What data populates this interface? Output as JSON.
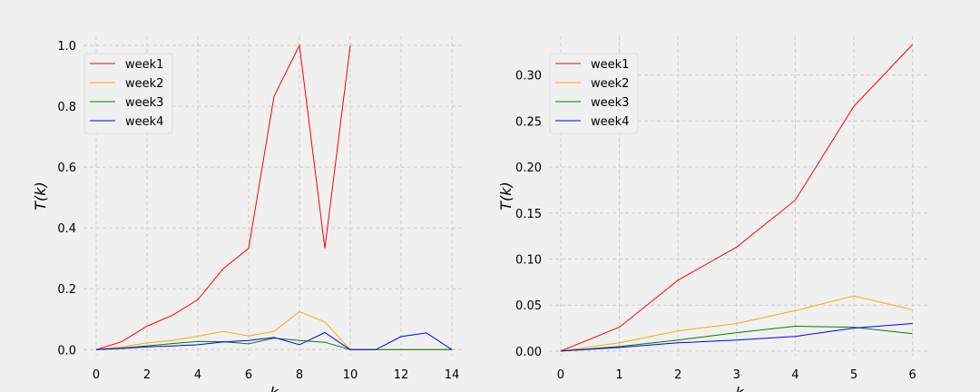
{
  "chart_data": [
    {
      "type": "line",
      "title": "",
      "xlabel": "k",
      "ylabel": "T(k)",
      "xlim": [
        -0.5,
        14.5
      ],
      "ylim": [
        -0.02,
        1.03
      ],
      "xticks": [
        0,
        2,
        4,
        6,
        8,
        10,
        12,
        14
      ],
      "yticks": [
        0.0,
        0.2,
        0.4,
        0.6,
        0.8,
        1.0
      ],
      "grid": true,
      "legend": "top-left",
      "series": [
        {
          "name": "week1",
          "color": "#ff0000",
          "x": [
            0,
            1,
            2,
            3,
            4,
            5,
            6,
            7,
            8,
            9,
            10
          ],
          "y": [
            0,
            0.026,
            0.077,
            0.113,
            0.164,
            0.266,
            0.333,
            0.833,
            1.0,
            0.333,
            1.0
          ]
        },
        {
          "name": "week2",
          "color": "#ffa500",
          "x": [
            0,
            1,
            2,
            3,
            4,
            5,
            6,
            7,
            8,
            9,
            10,
            11,
            12,
            13,
            14
          ],
          "y": [
            0,
            0.009,
            0.022,
            0.03,
            0.044,
            0.06,
            0.045,
            0.06,
            0.125,
            0.091,
            0,
            0,
            0,
            0,
            0
          ]
        },
        {
          "name": "week3",
          "color": "#008000",
          "x": [
            0,
            1,
            2,
            3,
            4,
            5,
            6,
            7,
            8,
            9,
            10,
            11,
            12,
            13,
            14
          ],
          "y": [
            0,
            0.005,
            0.012,
            0.02,
            0.027,
            0.026,
            0.019,
            0.038,
            0.03,
            0.024,
            0,
            0,
            0,
            0,
            0
          ]
        },
        {
          "name": "week4",
          "color": "#0000ff",
          "x": [
            0,
            1,
            2,
            3,
            4,
            5,
            6,
            7,
            8,
            9,
            10,
            11,
            12,
            13,
            14
          ],
          "y": [
            0,
            0.004,
            0.009,
            0.012,
            0.016,
            0.025,
            0.03,
            0.04,
            0.016,
            0.056,
            0,
            0,
            0.043,
            0.055,
            0
          ]
        }
      ]
    },
    {
      "type": "line",
      "title": "",
      "xlabel": "k",
      "ylabel": "T(k)",
      "xlim": [
        -0.2,
        6.3
      ],
      "ylim": [
        -0.005,
        0.342
      ],
      "xticks": [
        0,
        1,
        2,
        3,
        4,
        5,
        6
      ],
      "yticks": [
        0.0,
        0.05,
        0.1,
        0.15,
        0.2,
        0.25,
        0.3
      ],
      "grid": true,
      "legend": "top-left",
      "series": [
        {
          "name": "week1",
          "color": "#ff0000",
          "x": [
            0,
            1,
            2,
            3,
            4,
            5,
            6
          ],
          "y": [
            0,
            0.026,
            0.077,
            0.113,
            0.164,
            0.266,
            0.333
          ]
        },
        {
          "name": "week2",
          "color": "#ffa500",
          "x": [
            0,
            1,
            2,
            3,
            4,
            5,
            6
          ],
          "y": [
            0,
            0.009,
            0.022,
            0.03,
            0.044,
            0.06,
            0.045
          ]
        },
        {
          "name": "week3",
          "color": "#008000",
          "x": [
            0,
            1,
            2,
            3,
            4,
            5,
            6
          ],
          "y": [
            0,
            0.005,
            0.012,
            0.02,
            0.027,
            0.026,
            0.019
          ]
        },
        {
          "name": "week4",
          "color": "#0000ff",
          "x": [
            0,
            1,
            2,
            3,
            4,
            5,
            6
          ],
          "y": [
            0,
            0.004,
            0.009,
            0.012,
            0.016,
            0.025,
            0.03
          ]
        }
      ]
    }
  ]
}
